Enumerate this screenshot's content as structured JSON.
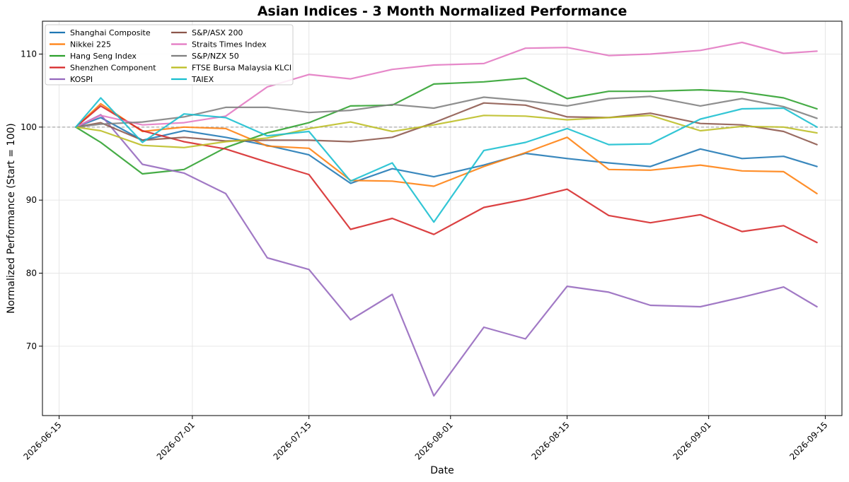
{
  "chart_data": {
    "type": "line",
    "title": "Asian Indices - 3 Month Normalized Performance",
    "xlabel": "Date",
    "ylabel": "Normalized Performance (Start = 100)",
    "x_ticks": [
      "2026-06-15",
      "2026-07-01",
      "2026-07-15",
      "2026-08-01",
      "2026-08-15",
      "2026-09-01",
      "2026-09-15"
    ],
    "y_ticks": [
      70,
      80,
      90,
      100,
      110
    ],
    "xlim": [
      "2026-06-13",
      "2026-09-17"
    ],
    "ylim": [
      60.5,
      114.5
    ],
    "reference_line": 100,
    "grid": true,
    "legend_position": "top-left",
    "x": [
      "2026-06-17",
      "2026-06-20",
      "2026-06-25",
      "2026-06-30",
      "2026-07-05",
      "2026-07-10",
      "2026-07-15",
      "2026-07-20",
      "2026-07-25",
      "2026-07-30",
      "2026-08-05",
      "2026-08-10",
      "2026-08-15",
      "2026-08-20",
      "2026-08-25",
      "2026-08-31",
      "2026-09-05",
      "2026-09-10",
      "2026-09-14"
    ],
    "series": [
      {
        "name": "Shanghai Composite",
        "color": "#1f77b4",
        "values": [
          100,
          101.3,
          98.2,
          99.5,
          98.6,
          97.5,
          96.2,
          92.3,
          94.3,
          93.2,
          94.8,
          96.4,
          95.7,
          95.1,
          94.6,
          97.0,
          95.7,
          96.0,
          94.6
        ]
      },
      {
        "name": "Nikkei 225",
        "color": "#ff7f0e",
        "values": [
          100,
          103.2,
          99.4,
          100.0,
          99.8,
          97.4,
          97.1,
          92.7,
          92.6,
          91.9,
          94.6,
          96.5,
          98.6,
          94.2,
          94.1,
          94.8,
          94.0,
          93.9,
          90.9
        ]
      },
      {
        "name": "Hang Seng Index",
        "color": "#2ca02c",
        "values": [
          100,
          97.9,
          93.6,
          94.2,
          97.2,
          99.2,
          100.6,
          102.9,
          103.0,
          105.9,
          106.2,
          106.7,
          103.9,
          104.9,
          104.9,
          105.1,
          104.8,
          104.0,
          102.5
        ]
      },
      {
        "name": "Shenzhen Component",
        "color": "#d62728",
        "values": [
          100,
          102.9,
          99.5,
          98.0,
          97.0,
          95.2,
          93.5,
          86.0,
          87.5,
          85.3,
          89.0,
          90.1,
          91.5,
          87.9,
          86.9,
          88.0,
          85.7,
          86.5,
          84.2
        ]
      },
      {
        "name": "KOSPI",
        "color": "#9467bd",
        "values": [
          100,
          101.7,
          94.9,
          93.7,
          90.9,
          82.1,
          80.5,
          73.6,
          77.1,
          63.2,
          72.6,
          71.0,
          78.2,
          77.4,
          75.6,
          75.4,
          76.7,
          78.1,
          75.4
        ]
      },
      {
        "name": "S&P/ASX 200",
        "color": "#8c564b",
        "values": [
          100,
          100.6,
          98.2,
          98.6,
          98.1,
          98.2,
          98.2,
          98.0,
          98.6,
          100.6,
          103.3,
          103.0,
          101.4,
          101.3,
          101.9,
          100.5,
          100.3,
          99.4,
          97.6
        ]
      },
      {
        "name": "Straits Times Index",
        "color": "#e377c2",
        "values": [
          100,
          101.6,
          100.3,
          100.6,
          101.5,
          105.5,
          107.2,
          106.6,
          107.9,
          108.5,
          108.7,
          110.8,
          110.9,
          109.8,
          110.0,
          110.5,
          111.6,
          110.1,
          110.4
        ]
      },
      {
        "name": "S&P/NZX 50",
        "color": "#7f7f7f",
        "values": [
          100,
          100.4,
          100.7,
          101.4,
          102.7,
          102.7,
          102.0,
          102.3,
          103.1,
          102.6,
          104.1,
          103.6,
          102.9,
          103.9,
          104.2,
          102.9,
          103.9,
          102.8,
          101.2
        ]
      },
      {
        "name": "FTSE Bursa Malaysia KLCI",
        "color": "#bcbd22",
        "values": [
          100,
          99.5,
          97.5,
          97.2,
          98.0,
          98.5,
          99.8,
          100.7,
          99.4,
          100.3,
          101.6,
          101.5,
          101.0,
          101.3,
          101.6,
          99.5,
          100.1,
          100.0,
          99.2
        ]
      },
      {
        "name": "TAIEX",
        "color": "#17becf",
        "values": [
          100,
          104.0,
          97.9,
          101.8,
          101.3,
          98.8,
          99.4,
          92.6,
          95.1,
          87.0,
          96.8,
          97.9,
          99.8,
          97.6,
          97.7,
          101.1,
          102.5,
          102.6,
          100.0
        ]
      }
    ]
  }
}
